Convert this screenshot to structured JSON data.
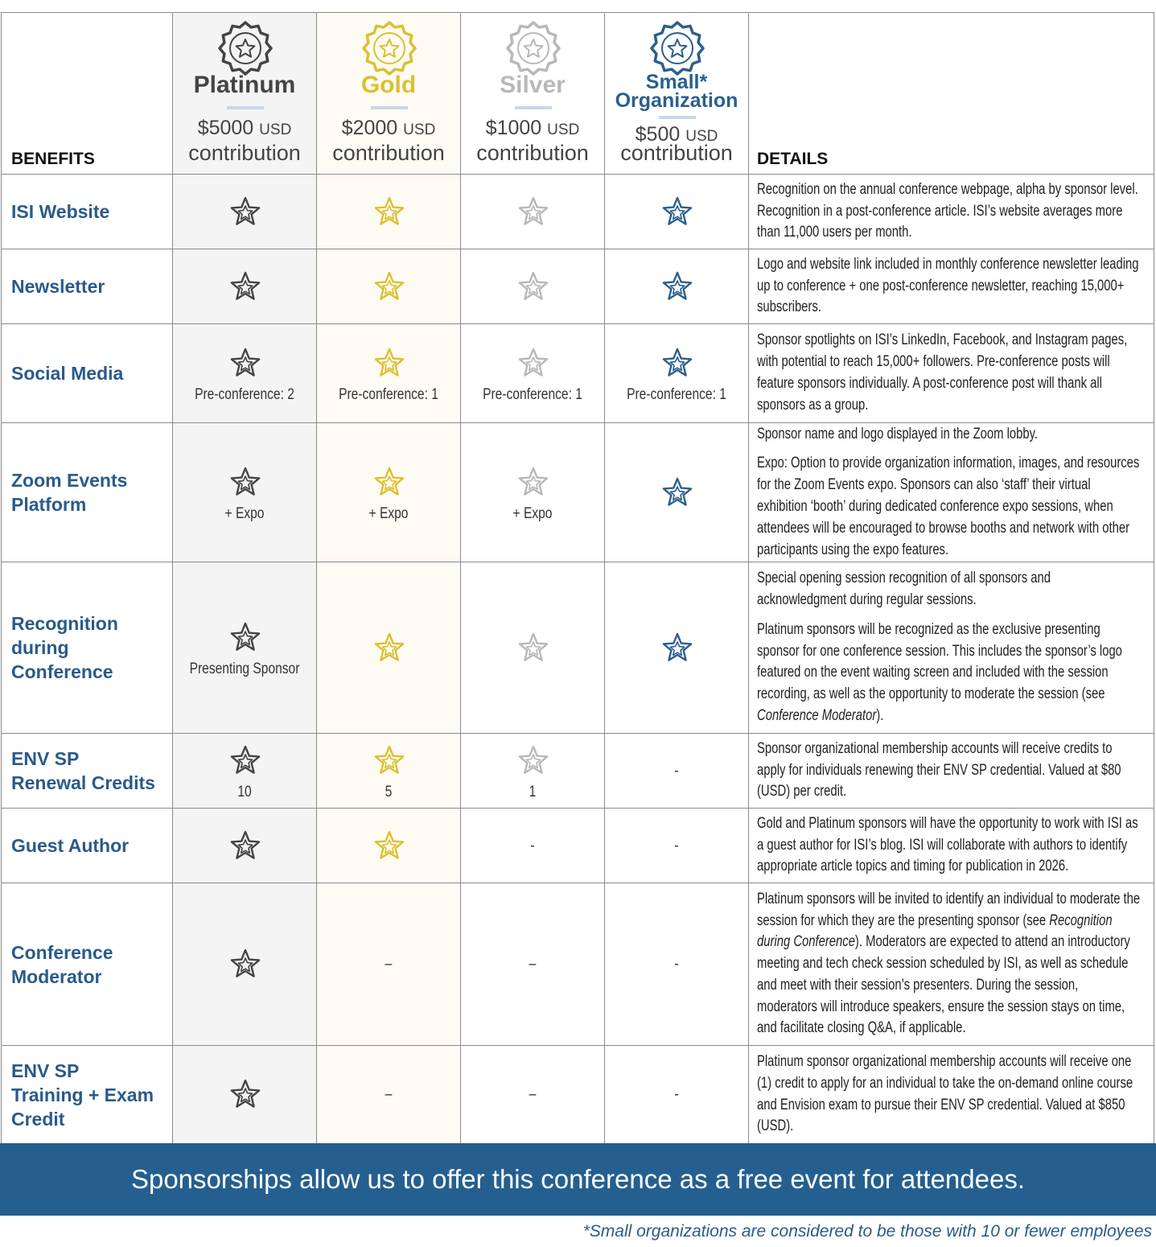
{
  "table": {
    "header": {
      "benefits": "BENEFITS",
      "details": "DETAILS",
      "tiers": [
        {
          "name": [
            "Platinum"
          ],
          "price": "$5000",
          "currency": "USD",
          "contribution": "contribution",
          "color": "#444444",
          "background": "#f4f4f4"
        },
        {
          "name": [
            "Gold"
          ],
          "price": "$2000",
          "currency": "USD",
          "contribution": "contribution",
          "color": "#dcc030",
          "background": "#fdfbf3"
        },
        {
          "name": [
            "Silver"
          ],
          "price": "$1000",
          "currency": "USD",
          "contribution": "contribution",
          "color": "#b8b8b8",
          "background": "#ffffff"
        },
        {
          "name": [
            "Small*",
            "Organization"
          ],
          "price": "$500",
          "currency": "USD",
          "contribution": "contribution",
          "color": "#2b5f8e",
          "background": "#ffffff"
        }
      ]
    },
    "rows": [
      {
        "benefit": [
          "ISI Website"
        ],
        "cells": [
          {
            "star": true
          },
          {
            "star": true
          },
          {
            "star": true
          },
          {
            "star": true
          }
        ],
        "details": [
          "Recognition on the annual conference webpage, alpha by sponsor level. Recognition in a post-conference article. ISI’s website averages more than 11,000 users per month."
        ]
      },
      {
        "benefit": [
          "Newsletter"
        ],
        "cells": [
          {
            "star": true
          },
          {
            "star": true
          },
          {
            "star": true
          },
          {
            "star": true
          }
        ],
        "details": [
          "Logo and website link included in monthly conference newsletter leading up to conference + one post-conference newsletter, reaching 15,000+ subscribers."
        ]
      },
      {
        "benefit": [
          "Social Media"
        ],
        "cells": [
          {
            "star": true,
            "note": "Pre-conference: 2"
          },
          {
            "star": true,
            "note": "Pre-conference: 1"
          },
          {
            "star": true,
            "note": "Pre-conference: 1"
          },
          {
            "star": true,
            "note": "Pre-conference: 1"
          }
        ],
        "details": [
          "Sponsor spotlights on ISI’s LinkedIn, Facebook, and Instagram pages, with potential to reach 15,000+ followers. Pre-conference posts will feature sponsors individually. A post-conference post will thank all sponsors as a group."
        ]
      },
      {
        "benefit": [
          "Zoom Events",
          "Platform"
        ],
        "cells": [
          {
            "star": true,
            "note": "+ Expo"
          },
          {
            "star": true,
            "note": "+ Expo"
          },
          {
            "star": true,
            "note": "+ Expo"
          },
          {
            "star": true
          }
        ],
        "details": [
          "Sponsor name and logo displayed in the Zoom lobby.",
          "Expo: Option to provide organization information, images, and resources for the Zoom Events expo. Sponsors can also ‘staff’ their virtual exhibition ‘booth’ during dedicated conference expo sessions, when attendees will be encouraged to browse booths and network with other participants using the expo features."
        ]
      },
      {
        "benefit": [
          "Recognition",
          "during",
          "Conference"
        ],
        "cells": [
          {
            "star": true,
            "note": "Presenting Sponsor"
          },
          {
            "star": true
          },
          {
            "star": true
          },
          {
            "star": true
          }
        ],
        "details": [
          "Special opening session recognition of all sponsors and acknowledgment during regular sessions.",
          [
            "Platinum sponsors will be recognized as the exclusive presenting sponsor for one conference session. This includes the sponsor’s logo featured on the event waiting screen and included with the session recording, as well as the opportunity to moderate the session (see ",
            {
              "italic": "Conference Moderator"
            },
            ")."
          ]
        ]
      },
      {
        "benefit": [
          "ENV SP",
          "Renewal Credits"
        ],
        "cells": [
          {
            "star": true,
            "note": "10"
          },
          {
            "star": true,
            "note": "5"
          },
          {
            "star": true,
            "note": "1"
          },
          {
            "star": false,
            "note": "-"
          }
        ],
        "details": [
          "Sponsor organizational membership accounts will receive credits to apply for individuals renewing their ENV SP credential. Valued at $80 (USD) per credit."
        ]
      },
      {
        "benefit": [
          "Guest Author"
        ],
        "cells": [
          {
            "star": true
          },
          {
            "star": true
          },
          {
            "star": false,
            "note": "-"
          },
          {
            "star": false,
            "note": "-"
          }
        ],
        "details": [
          "Gold and Platinum sponsors will have the opportunity to work with ISI as a guest author for ISI’s blog. ISI will collaborate with authors to identify appropriate article topics and timing for publication in 2026."
        ]
      },
      {
        "benefit": [
          "Conference",
          "Moderator"
        ],
        "cells": [
          {
            "star": true
          },
          {
            "star": false,
            "note": "–"
          },
          {
            "star": false,
            "note": "–"
          },
          {
            "star": false,
            "note": "-"
          }
        ],
        "details": [
          [
            "Platinum sponsors will be invited to identify an individual to moderate the session for which they are the presenting sponsor (see ",
            {
              "italic": "Recognition during Conference"
            },
            "). Moderators are expected to attend an introductory meeting and tech check session scheduled by ISI, as well as schedule and meet with their session’s presenters. During the session, moderators will introduce speakers, ensure the session stays on time, and facilitate closing Q&A, if applicable."
          ]
        ]
      },
      {
        "benefit": [
          "ENV SP",
          "Training + Exam",
          "Credit"
        ],
        "cells": [
          {
            "star": true
          },
          {
            "star": false,
            "note": "–"
          },
          {
            "star": false,
            "note": "–"
          },
          {
            "star": false,
            "note": "-"
          }
        ],
        "details": [
          "Platinum sponsor organizational membership accounts will receive one (1) credit to apply for an individual to take the on-demand online course and Envision exam to pursue their ENV SP credential. Valued at $850 (USD)."
        ]
      }
    ]
  },
  "banner": "Sponsorships allow us to offer this conference as a free event for attendees.",
  "footnote": "*Small organizations are considered to be those with 10 or fewer employees"
}
